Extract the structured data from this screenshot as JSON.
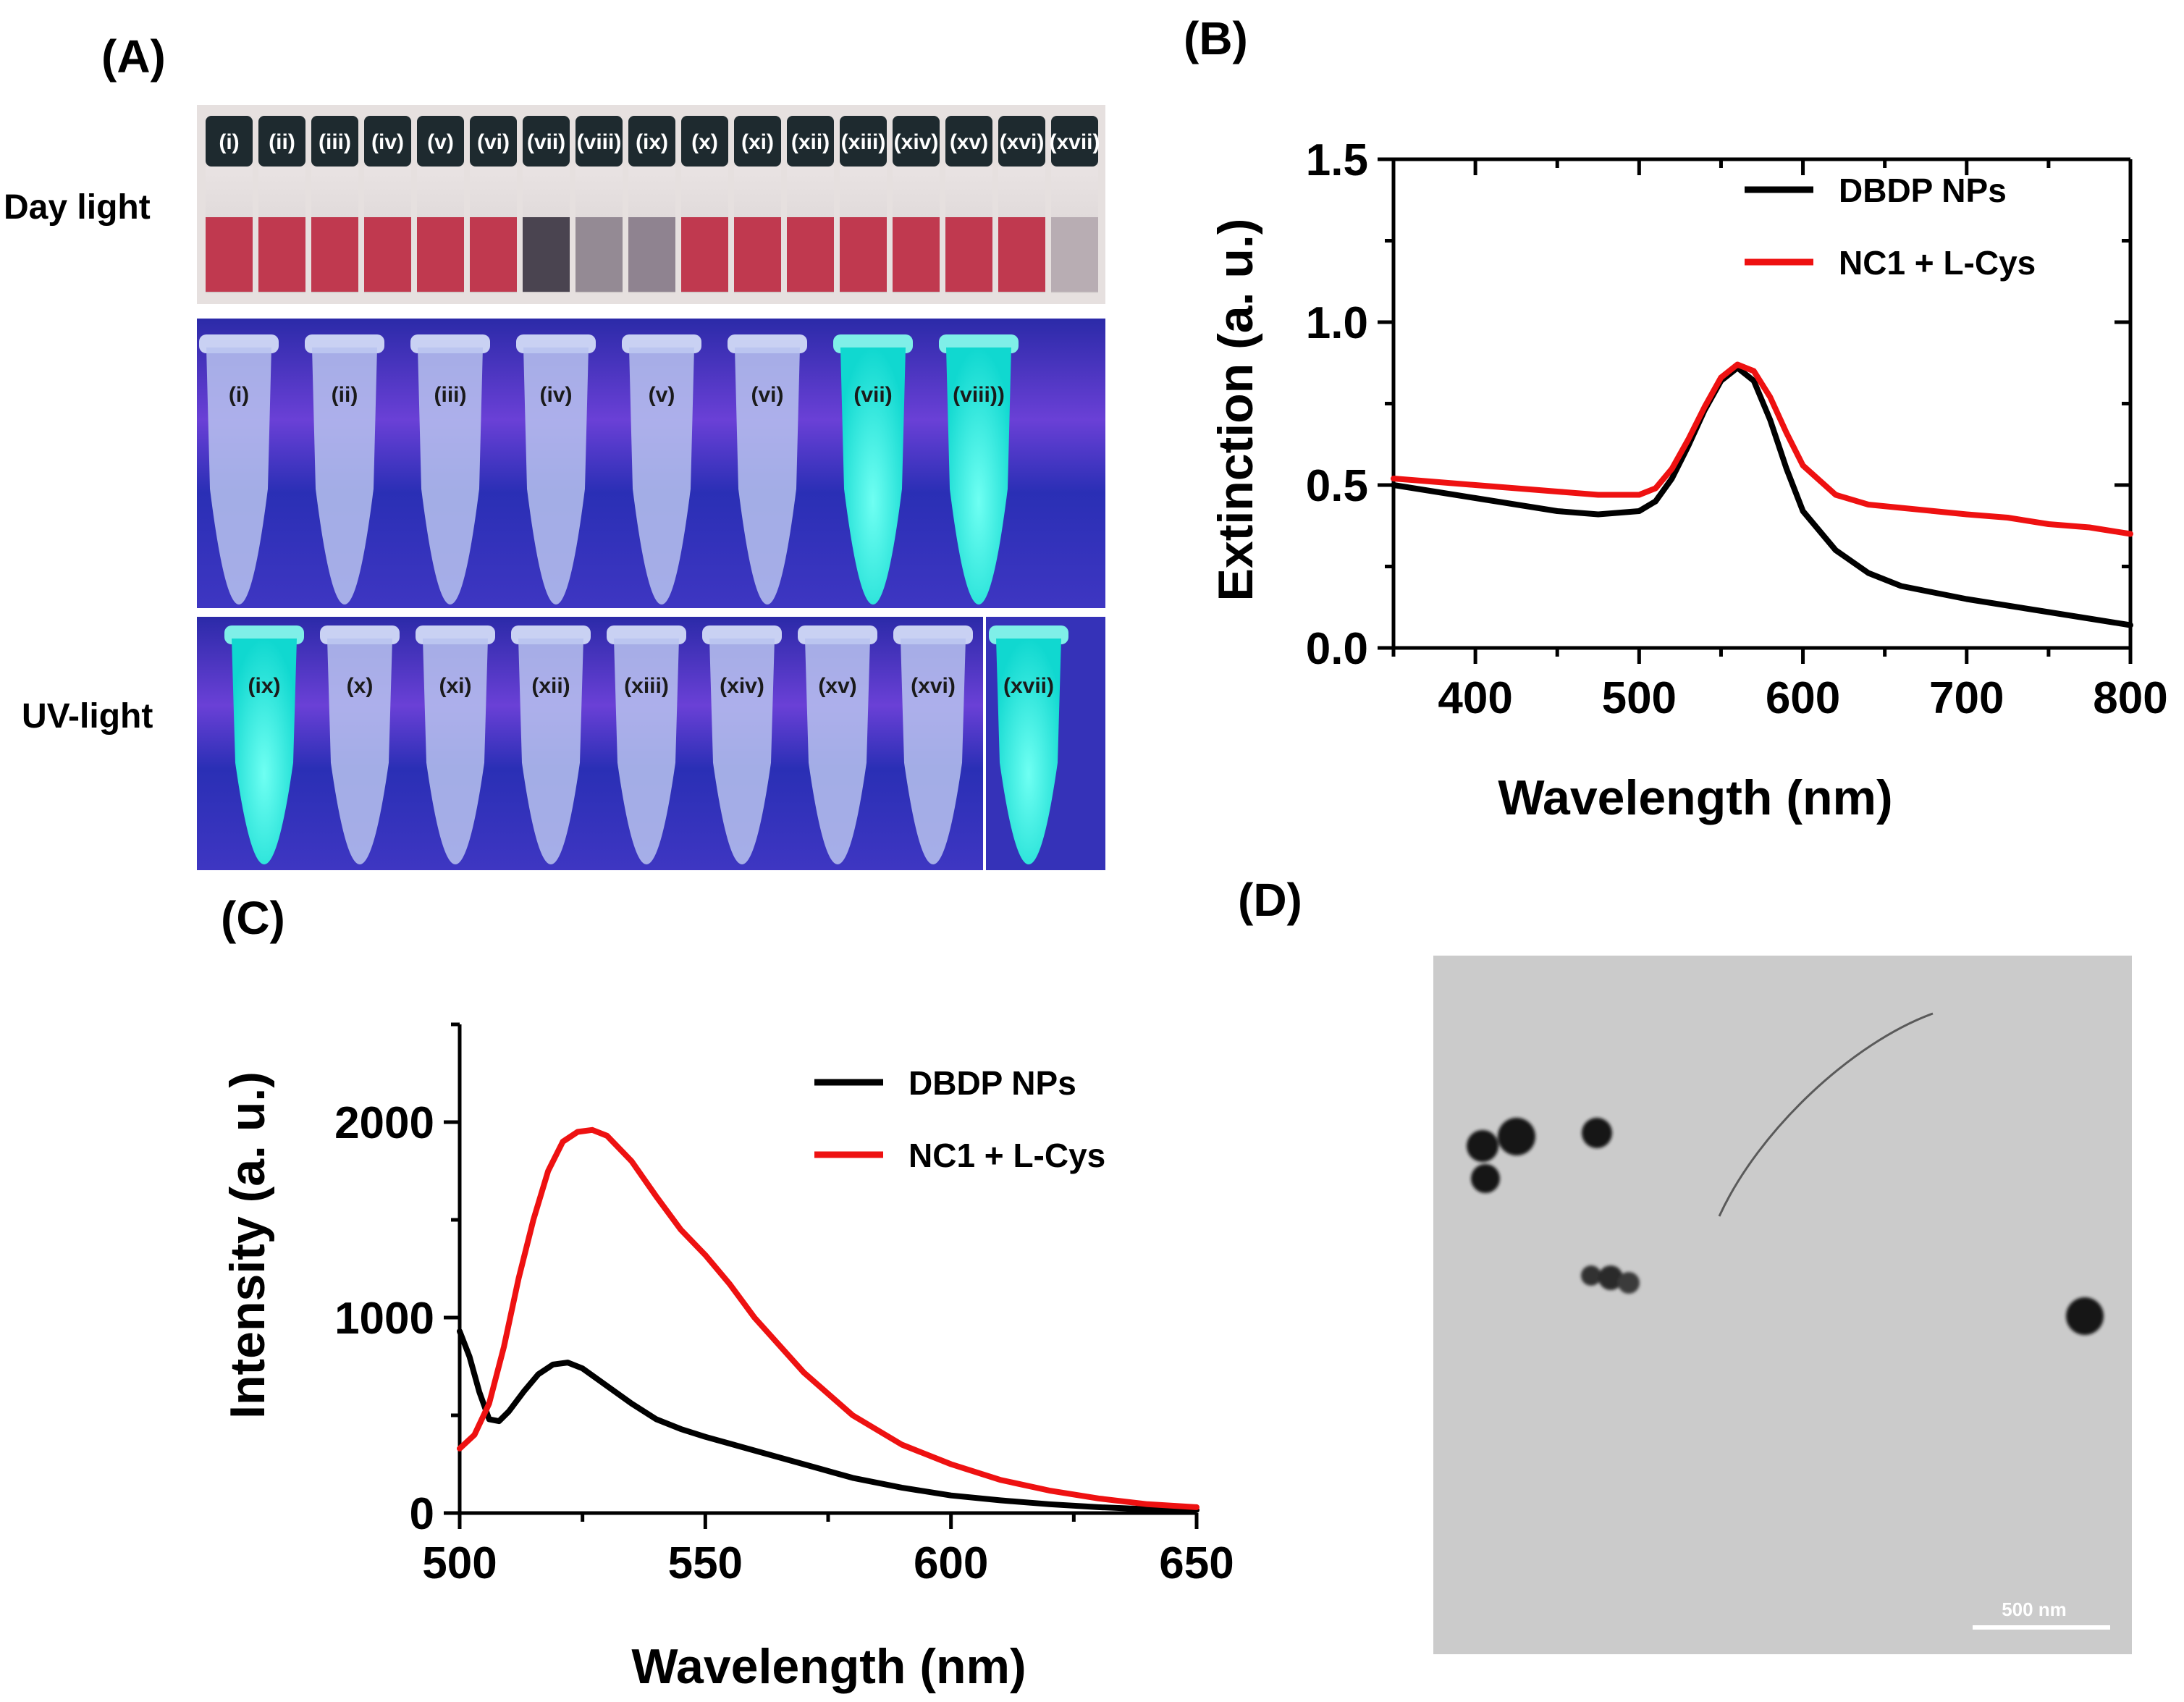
{
  "panels": {
    "a": {
      "label": "(A)"
    },
    "b": {
      "label": "(B)"
    },
    "c": {
      "label": "(C)"
    },
    "d": {
      "label": "(D)"
    }
  },
  "photo_a": {
    "day_label": "Day light",
    "uv_label": "UV-light",
    "vial_labels": [
      "(i)",
      "(ii)",
      "(iii)",
      "(iv)",
      "(v)",
      "(vi)",
      "(vii)",
      "(viii)",
      "(ix)",
      "(x)",
      "(xi)",
      "(xii)",
      "(xiii)",
      "(xiv)",
      "(xv)",
      "(xvi)",
      "(xvii)"
    ],
    "uv_top_labels": [
      "(i)",
      "(ii)",
      "(iii)",
      "(iv)",
      "(v)",
      "(vi)",
      "(vii)",
      "(viii))"
    ],
    "uv_bottom_labels": [
      "(ix)",
      "(x)",
      "(xi)",
      "(xii)",
      "(xiii)",
      "(xiv)",
      "(xv)",
      "(xvi)",
      "(xvii)"
    ]
  },
  "tem_d": {
    "scale_bar_label": "500 nm"
  },
  "colors": {
    "series_black": "#000000",
    "series_red": "#ee1111",
    "day_red": "#c0394f",
    "uv_glow": "#2ff0e0",
    "uv_bg": "#4a37c9"
  },
  "chart_data": [
    {
      "type": "line",
      "panel": "(B)",
      "xlabel": "Wavelength (nm)",
      "ylabel": "Extinction (a. u.)",
      "xlim": [
        350,
        800
      ],
      "ylim": [
        0.0,
        1.5
      ],
      "xticks": [
        400,
        500,
        600,
        700,
        800
      ],
      "yticks": [
        0.0,
        0.5,
        1.0,
        1.5
      ],
      "xtick_labels": [
        "400",
        "500",
        "600",
        "700",
        "800"
      ],
      "ytick_labels": [
        "0.0",
        "0.5",
        "1.0",
        "1.5"
      ],
      "legend_position": "top-right",
      "series": [
        {
          "name": "DBDP NPs",
          "color": "#000000",
          "x": [
            350,
            375,
            400,
            425,
            450,
            475,
            500,
            510,
            520,
            530,
            540,
            550,
            560,
            570,
            580,
            590,
            600,
            620,
            640,
            660,
            680,
            700,
            725,
            750,
            775,
            800
          ],
          "y": [
            0.5,
            0.48,
            0.46,
            0.44,
            0.42,
            0.41,
            0.42,
            0.45,
            0.52,
            0.62,
            0.73,
            0.82,
            0.86,
            0.82,
            0.7,
            0.55,
            0.42,
            0.3,
            0.23,
            0.19,
            0.17,
            0.15,
            0.13,
            0.11,
            0.09,
            0.07
          ]
        },
        {
          "name": "NC1 + L-Cys",
          "color": "#ee1111",
          "x": [
            350,
            375,
            400,
            425,
            450,
            475,
            500,
            510,
            520,
            530,
            540,
            550,
            560,
            570,
            580,
            590,
            600,
            620,
            640,
            660,
            680,
            700,
            725,
            750,
            775,
            800
          ],
          "y": [
            0.52,
            0.51,
            0.5,
            0.49,
            0.48,
            0.47,
            0.47,
            0.49,
            0.55,
            0.64,
            0.74,
            0.83,
            0.87,
            0.85,
            0.77,
            0.66,
            0.56,
            0.47,
            0.44,
            0.43,
            0.42,
            0.41,
            0.4,
            0.38,
            0.37,
            0.35
          ]
        }
      ]
    },
    {
      "type": "line",
      "panel": "(C)",
      "xlabel": "Wavelength (nm)",
      "ylabel": "Intensity (a. u.)",
      "xlim": [
        500,
        650
      ],
      "ylim": [
        0,
        2500
      ],
      "xticks": [
        500,
        550,
        600,
        650
      ],
      "yticks": [
        0,
        1000,
        2000
      ],
      "xtick_labels": [
        "500",
        "550",
        "600",
        "650"
      ],
      "ytick_labels": [
        "0",
        "1000",
        "2000"
      ],
      "legend_position": "top-right",
      "series": [
        {
          "name": "DBDP NPs",
          "color": "#000000",
          "x": [
            500,
            502,
            504,
            506,
            508,
            510,
            513,
            516,
            519,
            522,
            525,
            530,
            535,
            540,
            545,
            550,
            560,
            570,
            580,
            590,
            600,
            610,
            620,
            630,
            640,
            650
          ],
          "y": [
            930,
            800,
            620,
            480,
            470,
            520,
            620,
            710,
            760,
            770,
            740,
            650,
            560,
            480,
            430,
            390,
            320,
            250,
            180,
            130,
            90,
            65,
            45,
            30,
            20,
            15
          ]
        },
        {
          "name": "NC1 + L-Cys",
          "color": "#ee1111",
          "x": [
            500,
            503,
            506,
            509,
            512,
            515,
            518,
            521,
            524,
            527,
            530,
            535,
            540,
            545,
            550,
            555,
            560,
            570,
            580,
            590,
            600,
            610,
            620,
            630,
            640,
            650
          ],
          "y": [
            330,
            400,
            560,
            850,
            1200,
            1500,
            1750,
            1900,
            1950,
            1960,
            1930,
            1800,
            1620,
            1450,
            1320,
            1170,
            1000,
            720,
            500,
            350,
            250,
            170,
            115,
            75,
            45,
            30
          ]
        }
      ]
    }
  ]
}
